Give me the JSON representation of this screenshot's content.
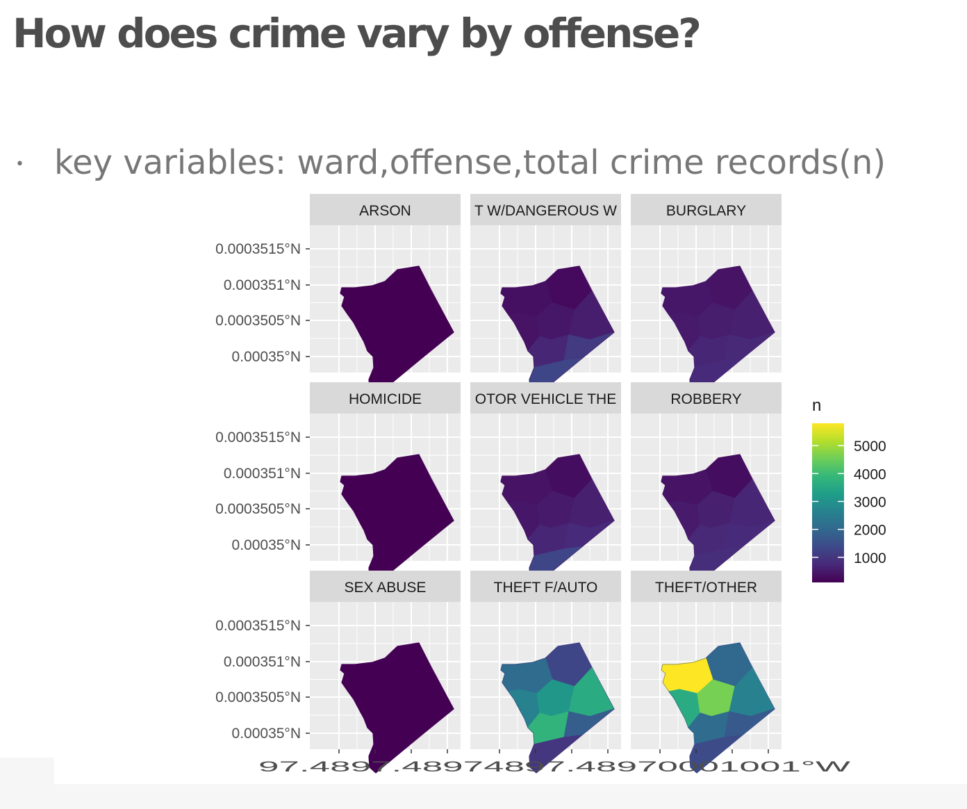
{
  "slide": {
    "title": "How does crime vary by offense?",
    "bullet": "key variables: ward,offense,total crime records(n)"
  },
  "chart_data": {
    "type": "heatmap",
    "subtype": "faceted choropleth map",
    "facets": [
      "ARSON",
      "T W/DANGEROUS W",
      "BURGLARY",
      "HOMICIDE",
      "OTOR VEHICLE THE",
      "ROBBERY",
      "SEX ABUSE",
      "THEFT F/AUTO",
      "THEFT/OTHER"
    ],
    "y_tick_labels": [
      "0.0003515°N",
      "0.000351°N",
      "0.0003505°N",
      "0.00035°N"
    ],
    "x_tick_label_text": "97.4897.48974897.48970001001°W",
    "legend": {
      "title": "n",
      "position": "right",
      "ticks": [
        1000,
        2000,
        3000,
        4000,
        5000
      ],
      "range": [
        100,
        5800
      ]
    },
    "colors": {
      "panel_bg": "#ebebeb",
      "strip_bg": "#d9d9d9",
      "grid": "#ffffff",
      "viridis": [
        "#440154",
        "#482878",
        "#3e4989",
        "#31688e",
        "#26828e",
        "#1f9e89",
        "#35b779",
        "#6ece58",
        "#b5de2b",
        "#fde725"
      ]
    },
    "ward_counts": [
      [
        20,
        15,
        10,
        12,
        18,
        10,
        5,
        8
      ],
      [
        250,
        350,
        400,
        450,
        550,
        700,
        1100,
        1300
      ],
      [
        400,
        450,
        500,
        550,
        600,
        700,
        750,
        800
      ],
      [
        10,
        15,
        20,
        25,
        30,
        50,
        70,
        80
      ],
      [
        300,
        400,
        450,
        500,
        600,
        700,
        800,
        1300
      ],
      [
        300,
        400,
        500,
        600,
        700,
        750,
        800,
        850
      ],
      [
        10,
        15,
        20,
        25,
        30,
        35,
        40,
        45
      ],
      [
        1300,
        2100,
        2600,
        3100,
        3600,
        3800,
        1800,
        1000
      ],
      [
        2000,
        5800,
        3600,
        4600,
        2600,
        2100,
        1700,
        1400
      ]
    ]
  }
}
